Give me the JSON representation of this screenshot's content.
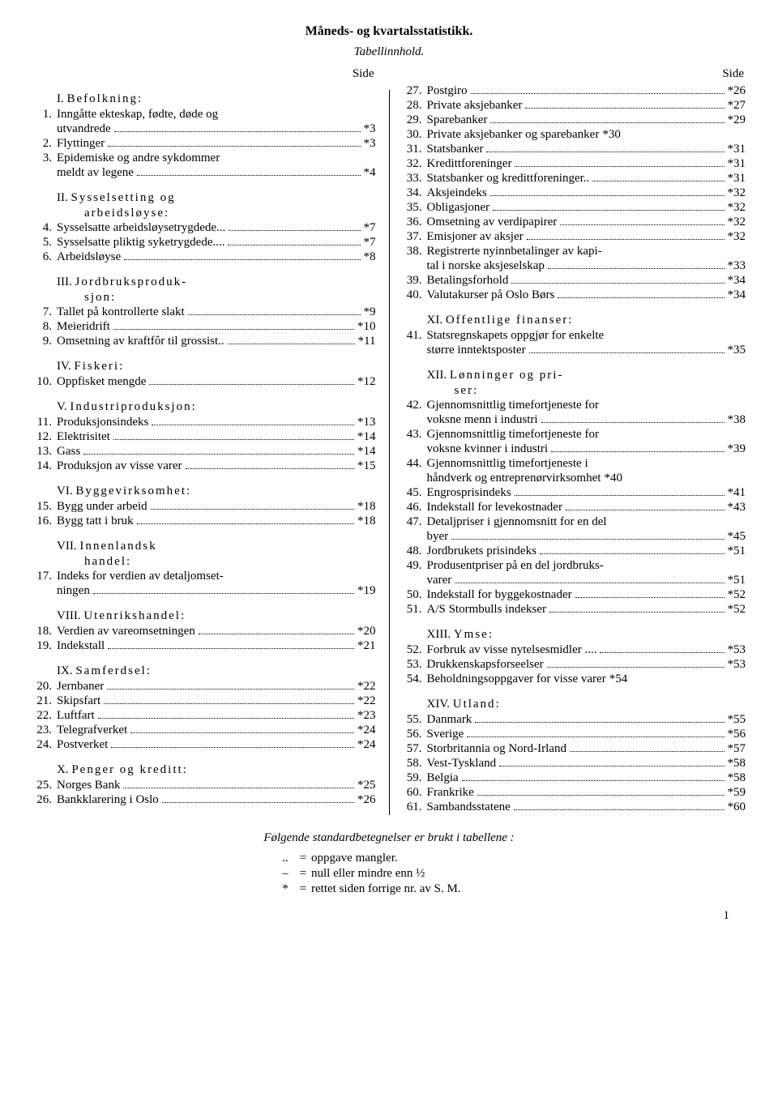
{
  "title": "Måneds- og kvartalsstatistikk.",
  "subtitle": "Tabellinnhold.",
  "side_label": "Side",
  "footnote": "Følgende standardbetegnelser er brukt i tabellene :",
  "legend": [
    {
      "sym": "..",
      "eq": "=",
      "text": "oppgave mangler."
    },
    {
      "sym": "–",
      "eq": "=",
      "text": "null eller mindre enn ½"
    },
    {
      "sym": "*",
      "eq": "=",
      "text": "rettet siden forrige nr. av S. M."
    }
  ],
  "page_number": "1",
  "left": [
    {
      "type": "shead",
      "roman": "I.",
      "title": "Befolkning:"
    },
    {
      "type": "entry",
      "n": "1.",
      "label_lines": [
        "Inngåtte ekteskap, fødte, døde og",
        "utvandrede"
      ],
      "page": "*3"
    },
    {
      "type": "entry",
      "n": "2.",
      "label_lines": [
        "Flyttinger"
      ],
      "page": "*3"
    },
    {
      "type": "entry",
      "n": "3.",
      "label_lines": [
        "Epidemiske og andre sykdommer",
        "meldt av legene"
      ],
      "page": "*4"
    },
    {
      "type": "shead",
      "roman": "II.",
      "title": "Sysselsetting og",
      "title2": "arbeidsløyse:"
    },
    {
      "type": "entry",
      "n": "4.",
      "label_lines": [
        "Sysselsatte arbeidsløysetrygdede..."
      ],
      "page": "*7"
    },
    {
      "type": "entry",
      "n": "5.",
      "label_lines": [
        "Sysselsatte pliktig syketrygdede...."
      ],
      "page": "*7"
    },
    {
      "type": "entry",
      "n": "6.",
      "label_lines": [
        "Arbeidsløyse"
      ],
      "page": "*8"
    },
    {
      "type": "shead",
      "roman": "III.",
      "title": "Jordbruksproduk-",
      "title2": "sjon:"
    },
    {
      "type": "entry",
      "n": "7.",
      "label_lines": [
        "Tallet på kontrollerte slakt"
      ],
      "page": "*9"
    },
    {
      "type": "entry",
      "n": "8.",
      "label_lines": [
        "Meieridrift"
      ],
      "page": "*10"
    },
    {
      "type": "entry",
      "n": "9.",
      "label_lines": [
        "Omsetning av kraftfôr til grossist.."
      ],
      "page": "*11"
    },
    {
      "type": "shead",
      "roman": "IV.",
      "title": "Fiskeri:"
    },
    {
      "type": "entry",
      "n": "10.",
      "label_lines": [
        "Oppfisket mengde"
      ],
      "page": "*12"
    },
    {
      "type": "shead",
      "roman": "V.",
      "title": "Industriproduksjon:"
    },
    {
      "type": "entry",
      "n": "11.",
      "label_lines": [
        "Produksjonsindeks"
      ],
      "page": "*13"
    },
    {
      "type": "entry",
      "n": "12.",
      "label_lines": [
        "Elektrisitet"
      ],
      "page": "*14"
    },
    {
      "type": "entry",
      "n": "13.",
      "label_lines": [
        "Gass"
      ],
      "page": "*14"
    },
    {
      "type": "entry",
      "n": "14.",
      "label_lines": [
        "Produksjon av visse varer"
      ],
      "page": "*15"
    },
    {
      "type": "shead",
      "roman": "VI.",
      "title": "Byggevirksomhet:"
    },
    {
      "type": "entry",
      "n": "15.",
      "label_lines": [
        "Bygg under arbeid"
      ],
      "page": "*18"
    },
    {
      "type": "entry",
      "n": "16.",
      "label_lines": [
        "Bygg tatt i bruk"
      ],
      "page": "*18"
    },
    {
      "type": "shead",
      "roman": "VII.",
      "title": "Innenlandsk",
      "title2": "handel:"
    },
    {
      "type": "entry",
      "n": "17.",
      "label_lines": [
        "Indeks for verdien av detaljomset-",
        "ningen"
      ],
      "page": "*19"
    },
    {
      "type": "shead",
      "roman": "VIII.",
      "title": "Utenrikshandel:"
    },
    {
      "type": "entry",
      "n": "18.",
      "label_lines": [
        "Verdien av vareomsetningen"
      ],
      "page": "*20"
    },
    {
      "type": "entry",
      "n": "19.",
      "label_lines": [
        "Indekstall"
      ],
      "page": "*21"
    },
    {
      "type": "shead",
      "roman": "IX.",
      "title": "Samferdsel:"
    },
    {
      "type": "entry",
      "n": "20.",
      "label_lines": [
        "Jernbaner"
      ],
      "page": "*22"
    },
    {
      "type": "entry",
      "n": "21.",
      "label_lines": [
        "Skipsfart"
      ],
      "page": "*22"
    },
    {
      "type": "entry",
      "n": "22.",
      "label_lines": [
        "Luftfart"
      ],
      "page": "*23"
    },
    {
      "type": "entry",
      "n": "23.",
      "label_lines": [
        "Telegrafverket"
      ],
      "page": "*24"
    },
    {
      "type": "entry",
      "n": "24.",
      "label_lines": [
        "Postverket"
      ],
      "page": "*24"
    },
    {
      "type": "shead",
      "roman": "X.",
      "title": "Penger og kreditt:"
    },
    {
      "type": "entry",
      "n": "25.",
      "label_lines": [
        "Norges Bank"
      ],
      "page": "*25"
    },
    {
      "type": "entry",
      "n": "26.",
      "label_lines": [
        "Bankklarering i Oslo"
      ],
      "page": "*26"
    }
  ],
  "right": [
    {
      "type": "entry",
      "n": "27.",
      "label_lines": [
        "Postgiro"
      ],
      "page": "*26"
    },
    {
      "type": "entry",
      "n": "28.",
      "label_lines": [
        "Private aksjebanker"
      ],
      "page": "*27"
    },
    {
      "type": "entry",
      "n": "29.",
      "label_lines": [
        "Sparebanker"
      ],
      "page": "*29"
    },
    {
      "type": "entry",
      "n": "30.",
      "label_lines": [
        "Private aksjebanker og sparebanker"
      ],
      "page": "*30",
      "noleader": true
    },
    {
      "type": "entry",
      "n": "31.",
      "label_lines": [
        "Statsbanker"
      ],
      "page": "*31"
    },
    {
      "type": "entry",
      "n": "32.",
      "label_lines": [
        "Kredittforeninger"
      ],
      "page": "*31"
    },
    {
      "type": "entry",
      "n": "33.",
      "label_lines": [
        "Statsbanker og kredittforeninger.."
      ],
      "page": "*31"
    },
    {
      "type": "entry",
      "n": "34.",
      "label_lines": [
        "Aksjeindeks"
      ],
      "page": "*32"
    },
    {
      "type": "entry",
      "n": "35.",
      "label_lines": [
        "Obligasjoner"
      ],
      "page": "*32"
    },
    {
      "type": "entry",
      "n": "36.",
      "label_lines": [
        "Omsetning av verdipapirer"
      ],
      "page": "*32"
    },
    {
      "type": "entry",
      "n": "37.",
      "label_lines": [
        "Emisjoner av aksjer"
      ],
      "page": "*32"
    },
    {
      "type": "entry",
      "n": "38.",
      "label_lines": [
        "Registrerte nyinnbetalinger av kapi-",
        "tal i norske aksjeselskap"
      ],
      "page": "*33"
    },
    {
      "type": "entry",
      "n": "39.",
      "label_lines": [
        "Betalingsforhold"
      ],
      "page": "*34"
    },
    {
      "type": "entry",
      "n": "40.",
      "label_lines": [
        "Valutakurser på Oslo Børs"
      ],
      "page": "*34"
    },
    {
      "type": "shead",
      "roman": "XI.",
      "title": "Offentlige finanser:"
    },
    {
      "type": "entry",
      "n": "41.",
      "label_lines": [
        "Statsregnskapets oppgjør for enkelte",
        "større inntektsposter"
      ],
      "page": "*35"
    },
    {
      "type": "shead",
      "roman": "XII.",
      "title": "Lønninger og pri-",
      "title2": "ser:"
    },
    {
      "type": "entry",
      "n": "42.",
      "label_lines": [
        "Gjennomsnittlig timefortjeneste for",
        "voksne menn i industri"
      ],
      "page": "*38"
    },
    {
      "type": "entry",
      "n": "43.",
      "label_lines": [
        "Gjennomsnittlig timefortjeneste for",
        "voksne kvinner i industri"
      ],
      "page": "*39"
    },
    {
      "type": "entry",
      "n": "44.",
      "label_lines": [
        "Gjennomsnittlig timefortjeneste i",
        "håndverk og entreprenørvirksomhet"
      ],
      "page": "*40",
      "noleader": true
    },
    {
      "type": "entry",
      "n": "45.",
      "label_lines": [
        "Engrosprisindeks"
      ],
      "page": "*41"
    },
    {
      "type": "entry",
      "n": "46.",
      "label_lines": [
        "Indekstall for levekostnader"
      ],
      "page": "*43"
    },
    {
      "type": "entry",
      "n": "47.",
      "label_lines": [
        "Detaljpriser i gjennomsnitt for en del",
        "byer"
      ],
      "page": "*45"
    },
    {
      "type": "entry",
      "n": "48.",
      "label_lines": [
        "Jordbrukets prisindeks"
      ],
      "page": "*51"
    },
    {
      "type": "entry",
      "n": "49.",
      "label_lines": [
        "Produsentpriser på en del jordbruks-",
        "varer"
      ],
      "page": "*51"
    },
    {
      "type": "entry",
      "n": "50.",
      "label_lines": [
        "Indekstall for byggekostnader"
      ],
      "page": "*52"
    },
    {
      "type": "entry",
      "n": "51.",
      "label_lines": [
        "A/S Stormbulls indekser"
      ],
      "page": "*52"
    },
    {
      "type": "shead",
      "roman": "XIII.",
      "title": "Ymse:"
    },
    {
      "type": "entry",
      "n": "52.",
      "label_lines": [
        "Forbruk av visse nytelsesmidler ...."
      ],
      "page": "*53"
    },
    {
      "type": "entry",
      "n": "53.",
      "label_lines": [
        "Drukkenskapsforseelser"
      ],
      "page": "*53"
    },
    {
      "type": "entry",
      "n": "54.",
      "label_lines": [
        "Beholdningsoppgaver for visse varer"
      ],
      "page": "*54",
      "noleader": true
    },
    {
      "type": "shead",
      "roman": "XIV.",
      "title": "Utland:"
    },
    {
      "type": "entry",
      "n": "55.",
      "label_lines": [
        "Danmark"
      ],
      "page": "*55"
    },
    {
      "type": "entry",
      "n": "56.",
      "label_lines": [
        "Sverige"
      ],
      "page": "*56"
    },
    {
      "type": "entry",
      "n": "57.",
      "label_lines": [
        "Storbritannia og Nord-Irland"
      ],
      "page": "*57"
    },
    {
      "type": "entry",
      "n": "58.",
      "label_lines": [
        "Vest-Tyskland"
      ],
      "page": "*58"
    },
    {
      "type": "entry",
      "n": "59.",
      "label_lines": [
        "Belgia"
      ],
      "page": "*58"
    },
    {
      "type": "entry",
      "n": "60.",
      "label_lines": [
        "Frankrike"
      ],
      "page": "*59"
    },
    {
      "type": "entry",
      "n": "61.",
      "label_lines": [
        "Sambandsstatene"
      ],
      "page": "*60"
    }
  ]
}
